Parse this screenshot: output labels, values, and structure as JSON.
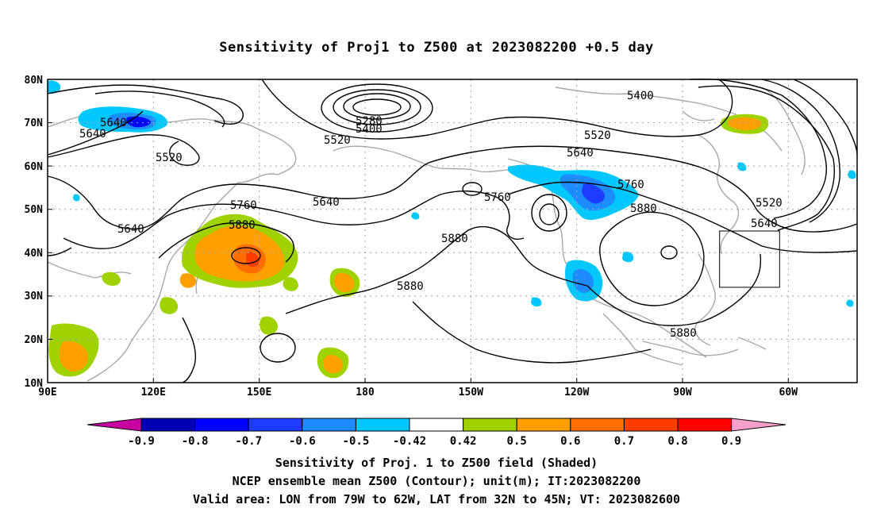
{
  "title": "Sensitivity of Proj1 to Z500 at 2023082200 +0.5 day",
  "lat_labels": [
    "80N",
    "70N",
    "60N",
    "50N",
    "40N",
    "30N",
    "20N",
    "10N"
  ],
  "lon_labels": [
    "90E",
    "120E",
    "150E",
    "180",
    "150W",
    "120W",
    "90W",
    "60W"
  ],
  "contour_labels": [
    "5280",
    "5400",
    "5520",
    "5640",
    "5640",
    "5640",
    "5520",
    "5640",
    "5760",
    "5880",
    "5760",
    "5880",
    "5880",
    "5520",
    "5640",
    "5400",
    "5760",
    "5880",
    "5880",
    "5520",
    "5640"
  ],
  "colorbar": {
    "labels": [
      "-0.9",
      "-0.8",
      "-0.7",
      "-0.6",
      "-0.5",
      "-0.42",
      "0.42",
      "0.5",
      "0.6",
      "0.7",
      "0.8",
      "0.9"
    ],
    "colors": [
      "#c800a0",
      "#0000b4",
      "#0000ff",
      "#1e3cff",
      "#1e8cff",
      "#00c8ff",
      "#ffffff",
      "#a0d200",
      "#ffa000",
      "#ff6e00",
      "#ff3c00",
      "#ff0000",
      "#f5a0c8"
    ]
  },
  "valid_box": {
    "lon_min": -79,
    "lon_max": -62,
    "lat_min": 32,
    "lat_max": 45
  },
  "captions": {
    "line1": "Sensitivity of Proj. 1 to Z500 field (Shaded)",
    "line2": "NCEP ensemble mean Z500 (Contour); unit(m); IT:2023082200",
    "line3": "Valid area: LON from 79W to 62W, LAT from 32N to 45N; VT: 2023082600"
  }
}
